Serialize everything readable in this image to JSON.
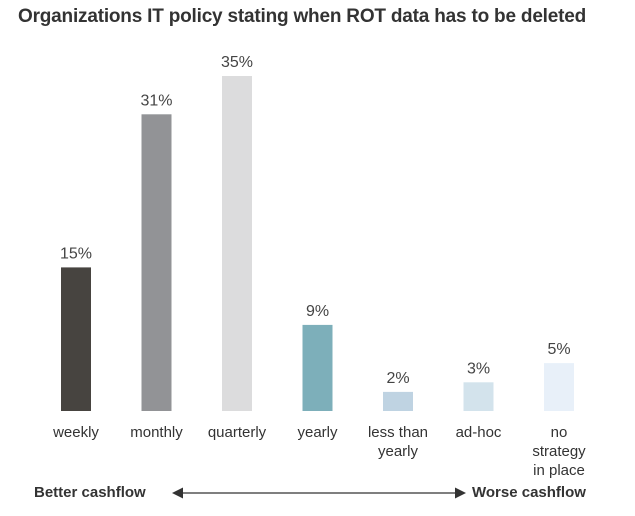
{
  "chart_data": {
    "type": "bar",
    "title": "Organizations IT policy stating when ROT data has to be deleted",
    "categories": [
      [
        "weekly"
      ],
      [
        "monthly"
      ],
      [
        "quarterly"
      ],
      [
        "yearly"
      ],
      [
        "less than",
        "yearly"
      ],
      [
        "ad-hoc"
      ],
      [
        "no",
        "strategy",
        "in place"
      ]
    ],
    "values": [
      15,
      31,
      35,
      9,
      2,
      3,
      5
    ],
    "value_labels": [
      "15%",
      "31%",
      "35%",
      "9%",
      "2%",
      "3%",
      "5%"
    ],
    "unit": "%",
    "bar_colors": [
      "#474440",
      "#929396",
      "#dcdcdd",
      "#7dafba",
      "#bfd3e2",
      "#d3e3ec",
      "#e8f0f9"
    ],
    "ylim": [
      0,
      35
    ],
    "grid": false,
    "legend": "none",
    "axis_annotation": {
      "left": "Better cashflow",
      "right": "Worse cashflow"
    }
  }
}
